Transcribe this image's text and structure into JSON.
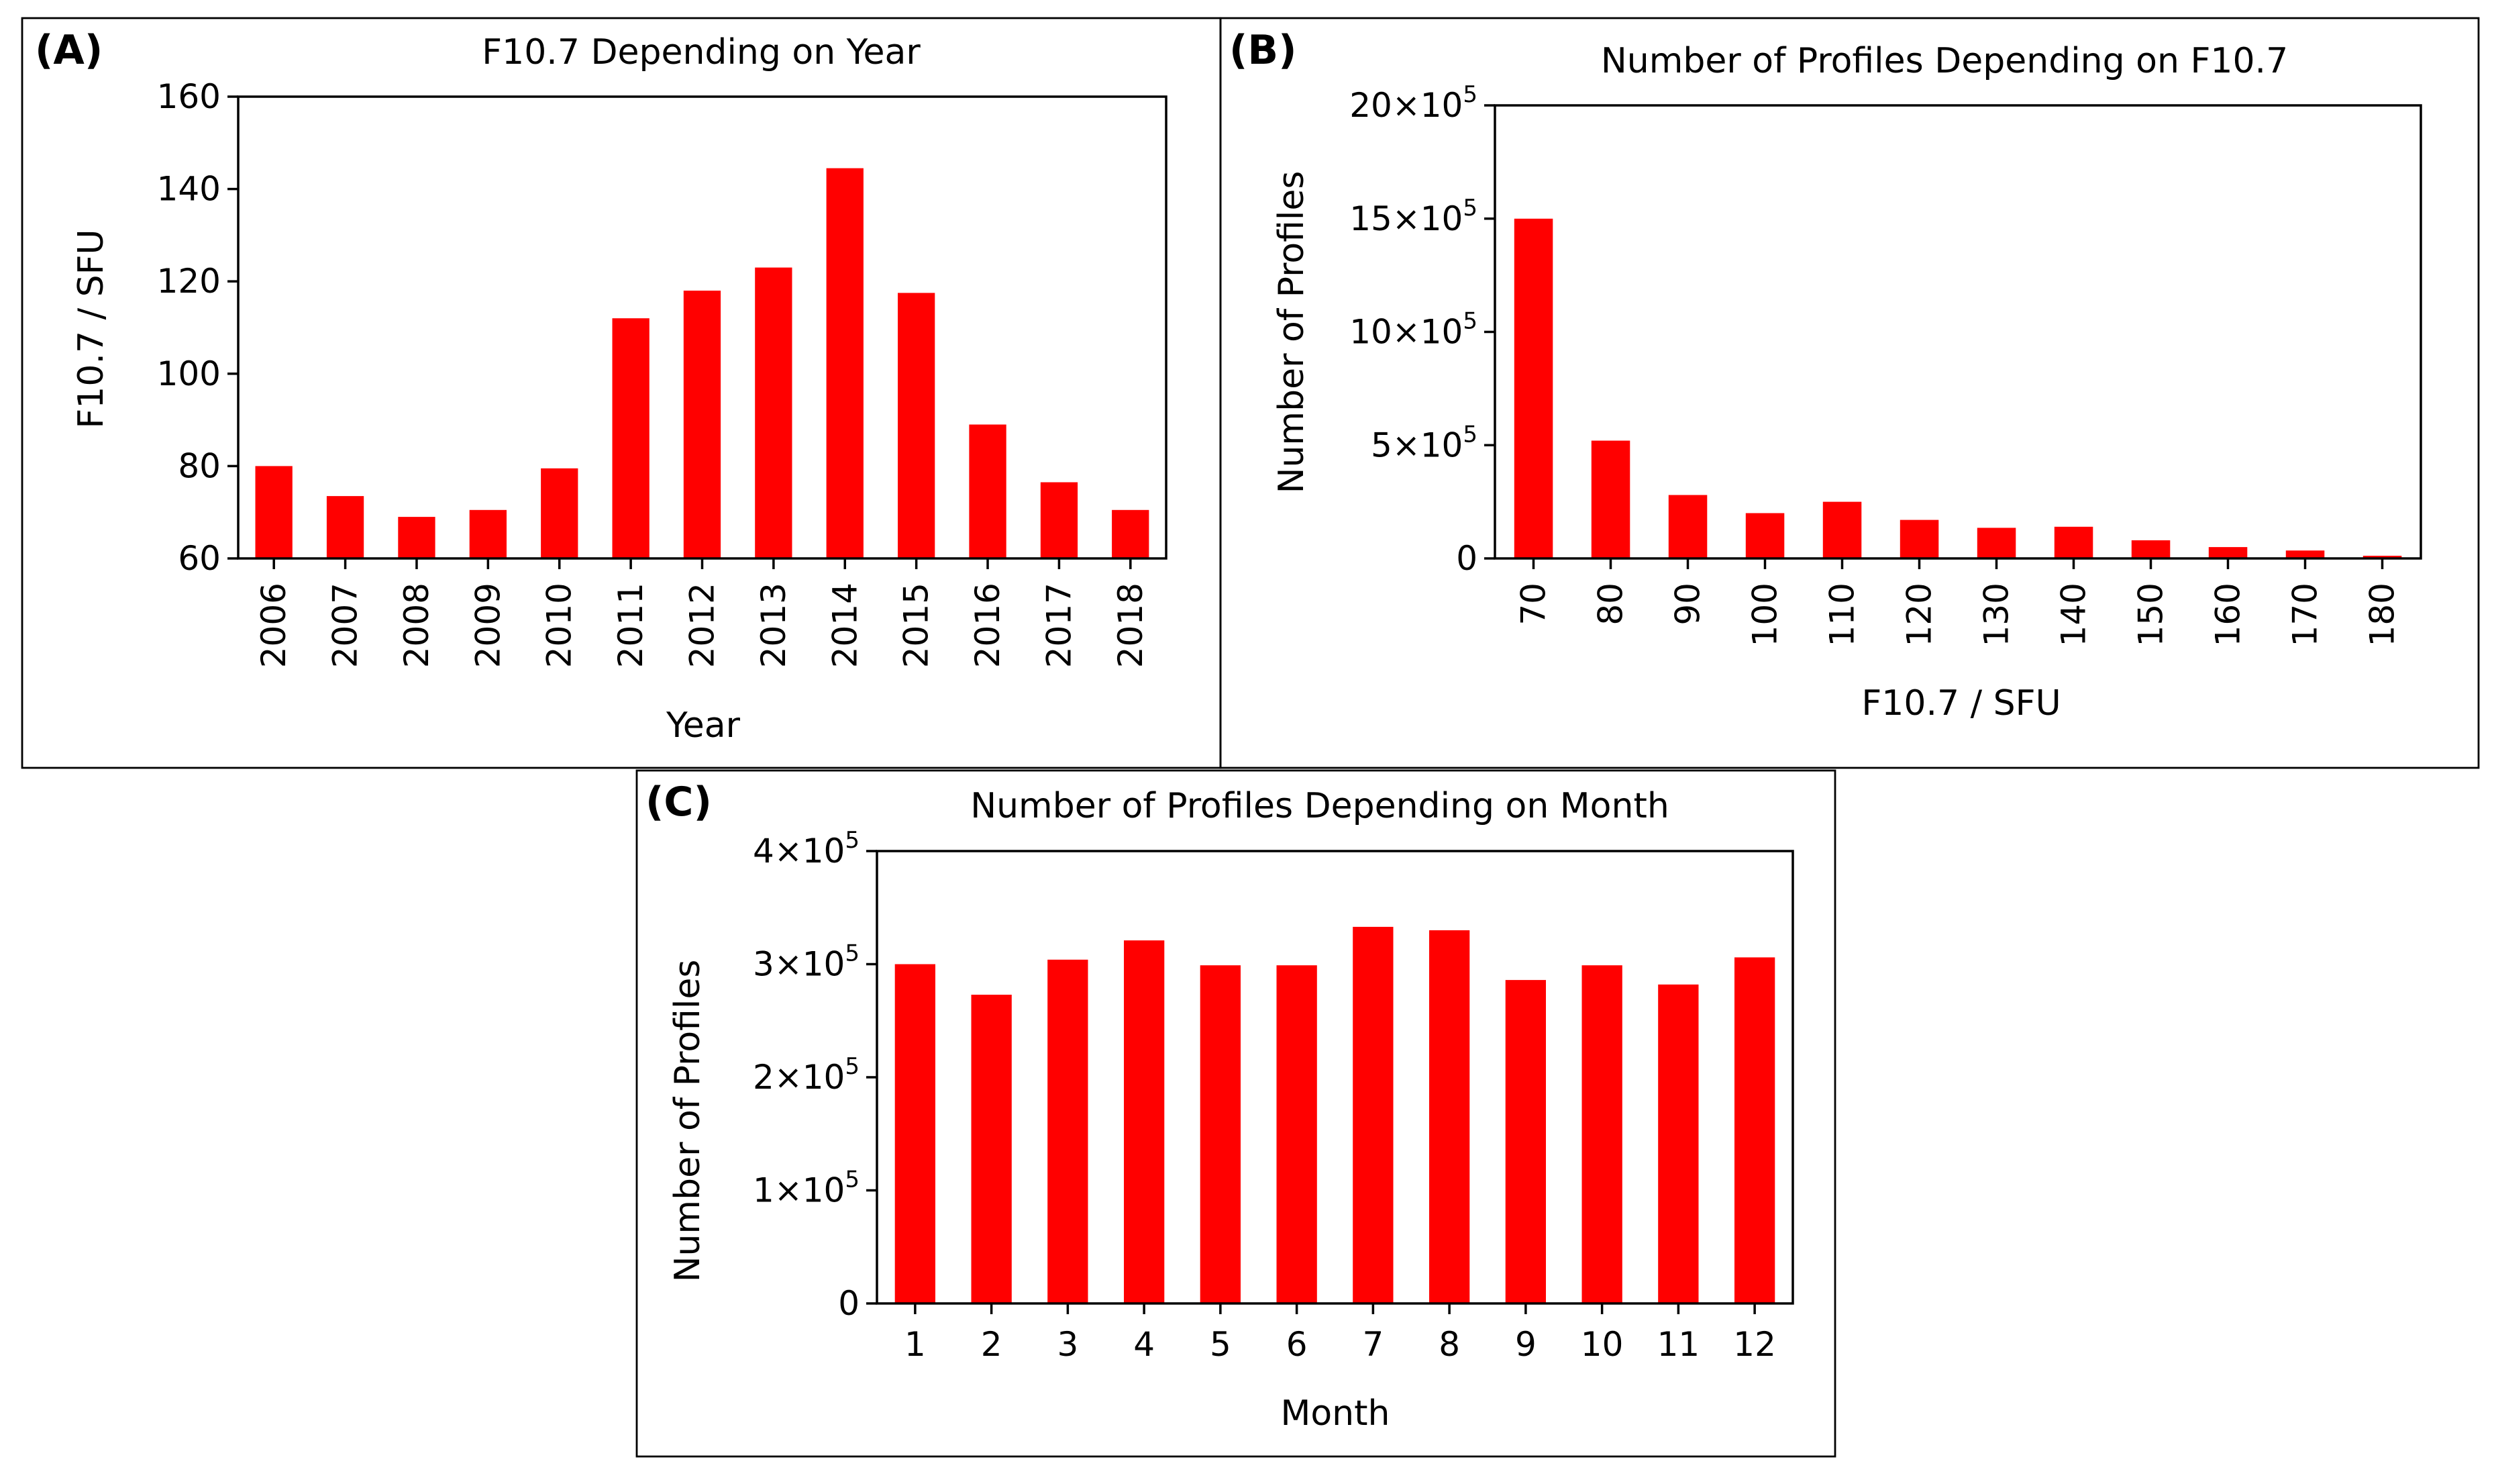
{
  "figure": {
    "colors": {
      "bar": "#ff0000",
      "axis": "#000000",
      "background": "#ffffff"
    }
  },
  "chart_data": [
    {
      "id": "A",
      "panel_label": "(A)",
      "type": "bar",
      "title": "F10.7 Depending on Year",
      "xlabel": "Year",
      "ylabel": "F10.7 / SFU",
      "categories": [
        "2006",
        "2007",
        "2008",
        "2009",
        "2010",
        "2011",
        "2012",
        "2013",
        "2014",
        "2015",
        "2016",
        "2017",
        "2018"
      ],
      "values": [
        80,
        73.5,
        69,
        70.5,
        79.5,
        112,
        118,
        123,
        144.5,
        117.5,
        89,
        76.5,
        70.5
      ],
      "ylim": [
        60,
        160
      ],
      "yticks": [
        60,
        80,
        100,
        120,
        140,
        160
      ],
      "ytick_labels": [
        "60",
        "80",
        "100",
        "120",
        "140",
        "160"
      ],
      "xtick_rotation": "vertical",
      "grid": false
    },
    {
      "id": "B",
      "panel_label": "(B)",
      "type": "bar",
      "title": "Number of Profiles Depending on F10.7",
      "xlabel": "F10.7 / SFU",
      "ylabel": "Number of Profiles",
      "categories": [
        "70",
        "80",
        "90",
        "100",
        "110",
        "120",
        "130",
        "140",
        "150",
        "160",
        "170",
        "180"
      ],
      "values": [
        1500000,
        520000,
        280000,
        200000,
        250000,
        170000,
        135000,
        140000,
        80000,
        50000,
        35000,
        12000
      ],
      "ylim": [
        0,
        2000000
      ],
      "yticks": [
        0,
        500000,
        1000000,
        1500000,
        2000000
      ],
      "ytick_labels": [
        {
          "base": "0",
          "exp": ""
        },
        {
          "base": "5×10",
          "exp": "5"
        },
        {
          "base": "10×10",
          "exp": "5"
        },
        {
          "base": "15×10",
          "exp": "5"
        },
        {
          "base": "20×10",
          "exp": "5"
        }
      ],
      "xtick_rotation": "vertical",
      "grid": false
    },
    {
      "id": "C",
      "panel_label": "(C)",
      "type": "bar",
      "title": "Number of Profiles Depending on Month",
      "xlabel": "Month",
      "ylabel": "Number of Profiles",
      "categories": [
        "1",
        "2",
        "3",
        "4",
        "5",
        "6",
        "7",
        "8",
        "9",
        "10",
        "11",
        "12"
      ],
      "values": [
        300000,
        273000,
        304000,
        321000,
        299000,
        299000,
        333000,
        330000,
        286000,
        299000,
        282000,
        306000
      ],
      "ylim": [
        0,
        400000
      ],
      "yticks": [
        0,
        100000,
        200000,
        300000,
        400000
      ],
      "ytick_labels": [
        {
          "base": "0",
          "exp": ""
        },
        {
          "base": "1×10",
          "exp": "5"
        },
        {
          "base": "2×10",
          "exp": "5"
        },
        {
          "base": "3×10",
          "exp": "5"
        },
        {
          "base": "4×10",
          "exp": "5"
        }
      ],
      "xtick_rotation": "horizontal",
      "grid": false
    }
  ]
}
